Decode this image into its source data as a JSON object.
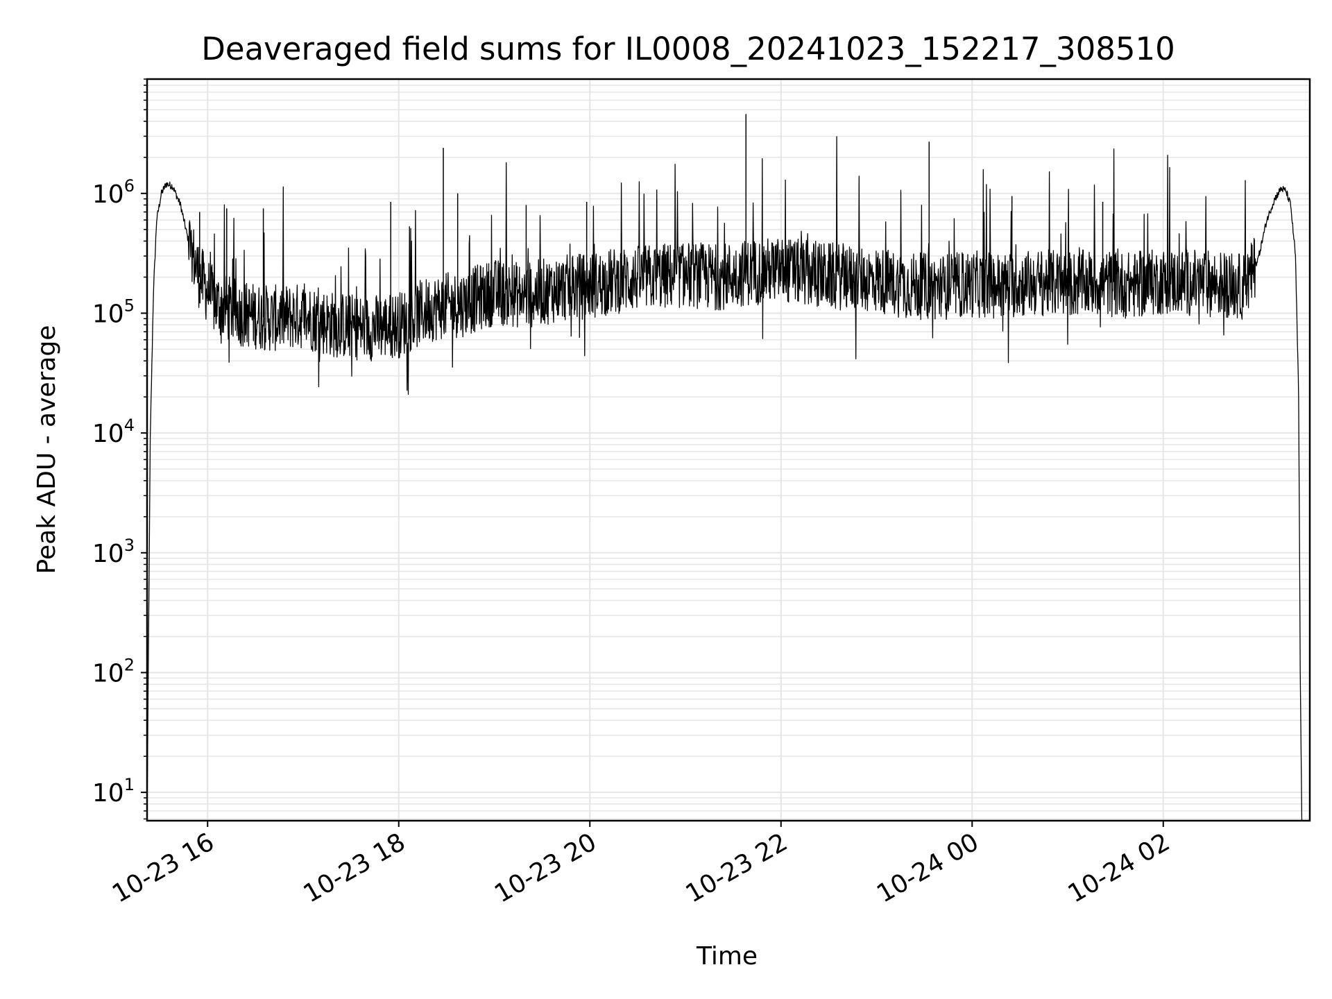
{
  "chart_data": {
    "type": "line",
    "title": "Deaveraged field sums for IL0008_20241023_152217_308510",
    "xlabel": "Time",
    "ylabel": "Peak ADU - average",
    "yscale": "log",
    "ylim": [
      5.8,
      9000000
    ],
    "xlim": [
      "2024-10-23 15:22",
      "2024-10-24 03:32"
    ],
    "grid": true,
    "line_color": "#000000",
    "grid_color": "#e6e6e6",
    "x_ticks": [
      "10-23 16",
      "10-23 18",
      "10-23 20",
      "10-23 22",
      "10-24 00",
      "10-24 02"
    ],
    "x_tick_times": [
      "2024-10-23 16:00",
      "2024-10-23 18:00",
      "2024-10-23 20:00",
      "2024-10-23 22:00",
      "2024-10-24 00:00",
      "2024-10-24 02:00"
    ],
    "y_ticks": [
      {
        "base": "10",
        "exp": "1",
        "value": 10
      },
      {
        "base": "10",
        "exp": "2",
        "value": 100
      },
      {
        "base": "10",
        "exp": "3",
        "value": 1000
      },
      {
        "base": "10",
        "exp": "4",
        "value": 10000
      },
      {
        "base": "10",
        "exp": "5",
        "value": 100000
      },
      {
        "base": "10",
        "exp": "6",
        "value": 1000000
      }
    ],
    "series": [
      {
        "x": [
          "2024-10-23 15:22",
          "2024-10-23 15:23",
          "2024-10-23 15:24",
          "2024-10-23 15:26",
          "2024-10-23 15:28",
          "2024-10-23 15:31",
          "2024-10-23 15:34",
          "2024-10-23 15:38",
          "2024-10-23 15:43",
          "2024-10-23 15:48",
          "2024-10-23 15:55",
          "2024-10-23 16:05",
          "2024-10-23 16:20",
          "2024-10-23 16:40",
          "2024-10-23 17:00",
          "2024-10-23 17:20",
          "2024-10-23 17:40",
          "2024-10-23 18:00",
          "2024-10-23 18:20",
          "2024-10-23 18:40",
          "2024-10-23 19:00",
          "2024-10-23 19:20",
          "2024-10-23 19:40",
          "2024-10-23 20:00",
          "2024-10-23 20:20",
          "2024-10-23 20:40",
          "2024-10-23 21:00",
          "2024-10-23 21:20",
          "2024-10-23 21:40",
          "2024-10-23 22:00",
          "2024-10-23 22:20",
          "2024-10-23 22:40",
          "2024-10-23 23:00",
          "2024-10-23 23:20",
          "2024-10-23 23:40",
          "2024-10-24 00:00",
          "2024-10-24 00:20",
          "2024-10-24 00:40",
          "2024-10-24 01:00",
          "2024-10-24 01:20",
          "2024-10-24 01:40",
          "2024-10-24 02:00",
          "2024-10-24 02:20",
          "2024-10-24 02:40",
          "2024-10-24 02:50",
          "2024-10-24 02:55",
          "2024-10-24 03:00",
          "2024-10-24 03:05",
          "2024-10-24 03:10",
          "2024-10-24 03:14",
          "2024-10-24 03:17",
          "2024-10-24 03:20",
          "2024-10-24 03:23",
          "2024-10-24 03:25",
          "2024-10-24 03:26",
          "2024-10-24 03:27"
        ],
        "y": [
          6,
          240,
          9000,
          150000,
          600000,
          1000000,
          1200000,
          1150000,
          800000,
          400000,
          200000,
          120000,
          100000,
          90000,
          95000,
          80000,
          75000,
          80000,
          110000,
          120000,
          150000,
          140000,
          160000,
          170000,
          190000,
          200000,
          210000,
          200000,
          220000,
          230000,
          210000,
          200000,
          190000,
          170000,
          165000,
          175000,
          170000,
          180000,
          175000,
          180000,
          170000,
          185000,
          180000,
          175000,
          165000,
          200000,
          300000,
          600000,
          900000,
          1100000,
          1050000,
          800000,
          300000,
          20000,
          100,
          6
        ],
        "spikes": [
          {
            "x": "2024-10-23 15:55",
            "y": 700000
          },
          {
            "x": "2024-10-23 16:12",
            "y": 750000
          },
          {
            "x": "2024-10-23 16:35",
            "y": 750000
          },
          {
            "x": "2024-10-23 17:55",
            "y": 850000
          },
          {
            "x": "2024-10-23 18:28",
            "y": 2400000
          },
          {
            "x": "2024-10-23 18:37",
            "y": 1000000
          },
          {
            "x": "2024-10-23 19:20",
            "y": 800000
          },
          {
            "x": "2024-10-23 19:58",
            "y": 850000
          },
          {
            "x": "2024-10-23 20:42",
            "y": 900000
          },
          {
            "x": "2024-10-23 21:38",
            "y": 4600000
          },
          {
            "x": "2024-10-23 23:33",
            "y": 2700000
          },
          {
            "x": "2024-10-24 00:25",
            "y": 950000
          },
          {
            "x": "2024-10-24 01:22",
            "y": 850000
          }
        ]
      }
    ]
  }
}
